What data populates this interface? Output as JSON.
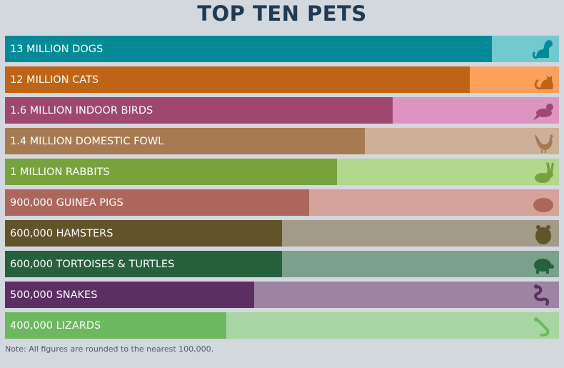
{
  "chart_data": {
    "type": "bar",
    "orientation": "horizontal",
    "title": "TOP TEN PETS",
    "note": "Note: All figures are rounded to the nearest 100,000.",
    "background": "#d3d7de",
    "title_color": "#1f3a52",
    "categories": [
      {
        "label": "13 MILLION DOGS",
        "value": 13000000,
        "fill": 0.879,
        "color": "#038a96",
        "track": "#72c9cf",
        "icon": "dog-icon"
      },
      {
        "label": "12 MILLION CATS",
        "value": 12000000,
        "fill": 0.839,
        "color": "#bf6414",
        "track": "#fba15b",
        "icon": "cat-icon"
      },
      {
        "label": "1.6 MILLION INDOOR BIRDS",
        "value": 1600000,
        "fill": 0.7,
        "color": "#9e4771",
        "track": "#de94c0",
        "icon": "bird-icon"
      },
      {
        "label": "1.4 MILLION DOMESTIC FOWL",
        "value": 1400000,
        "fill": 0.649,
        "color": "#a77b51",
        "track": "#cdb096",
        "icon": "rooster-icon"
      },
      {
        "label": "1 MILLION RABBITS",
        "value": 1000000,
        "fill": 0.599,
        "color": "#78a23c",
        "track": "#b3d78b",
        "icon": "rabbit-icon"
      },
      {
        "label": "900,000 GUINEA PIGS",
        "value": 900000,
        "fill": 0.549,
        "color": "#ad665c",
        "track": "#d6a39c",
        "icon": "guinea-pig-icon"
      },
      {
        "label": "600,000 HAMSTERS",
        "value": 600000,
        "fill": 0.5,
        "color": "#61532a",
        "track": "#a39a87",
        "icon": "hamster-icon"
      },
      {
        "label": "600,000 TORTOISES & TURTLES",
        "value": 600000,
        "fill": 0.5,
        "color": "#26603d",
        "track": "#7ba08b",
        "icon": "tortoise-icon"
      },
      {
        "label": "500,000 SNAKES",
        "value": 500000,
        "fill": 0.45,
        "color": "#5b2f62",
        "track": "#9d84a2",
        "icon": "snake-icon"
      },
      {
        "label": "400,000 LIZARDS",
        "value": 400000,
        "fill": 0.4,
        "color": "#6cb861",
        "track": "#a8d6a2",
        "icon": "lizard-icon"
      }
    ]
  }
}
